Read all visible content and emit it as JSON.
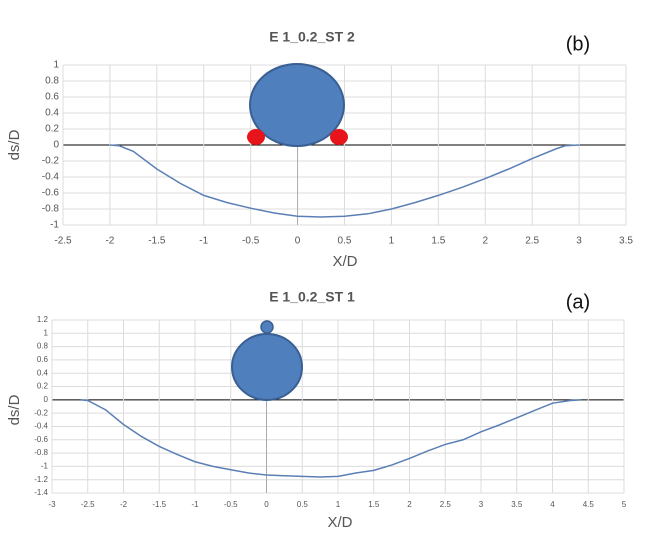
{
  "chart_data": [
    {
      "type": "line",
      "title": "E 1_0.2_ST 2",
      "panel_label": "(b)",
      "x_label": "X/D",
      "y_label": "ds/D",
      "x": [
        -2,
        -1.9,
        -1.75,
        -1.5,
        -1.25,
        -1,
        -0.75,
        -0.5,
        -0.25,
        0,
        0.25,
        0.5,
        0.75,
        1,
        1.25,
        1.5,
        1.75,
        2,
        2.25,
        2.5,
        2.75,
        2.85,
        3
      ],
      "series": [
        {
          "color": "#5b7fb5",
          "values": [
            0,
            -0.01,
            -0.08,
            -0.3,
            -0.48,
            -0.63,
            -0.72,
            -0.79,
            -0.85,
            -0.89,
            -0.9,
            -0.89,
            -0.86,
            -0.8,
            -0.72,
            -0.63,
            -0.53,
            -0.42,
            -0.3,
            -0.17,
            -0.05,
            -0.01,
            0
          ]
        }
      ],
      "xlim": [
        -2.5,
        3.5
      ],
      "xticks": [
        -2.5,
        -2,
        -1.5,
        -1,
        -0.5,
        0,
        0.5,
        1,
        1.5,
        2,
        2.5,
        3,
        3.5
      ],
      "ylim": [
        -1,
        1
      ],
      "yticks": [
        -1,
        -0.8,
        -0.6,
        -0.4,
        -0.2,
        0,
        0.2,
        0.4,
        0.6,
        0.8,
        1
      ],
      "grid": true
    },
    {
      "type": "line",
      "title": "E 1_0.2_ST 1",
      "panel_label": "(a)",
      "x_label": "X/D",
      "y_label": "ds/D",
      "x": [
        -2.6,
        -2.5,
        -2.25,
        -2,
        -1.75,
        -1.5,
        -1.25,
        -1,
        -0.75,
        -0.5,
        -0.25,
        0,
        0.25,
        0.5,
        0.75,
        1,
        1.25,
        1.5,
        1.75,
        2,
        2.25,
        2.5,
        2.75,
        3,
        3.25,
        3.5,
        3.75,
        4,
        4.25,
        4.4
      ],
      "series": [
        {
          "color": "#5b7fb5",
          "values": [
            0,
            -0.01,
            -0.15,
            -0.37,
            -0.55,
            -0.7,
            -0.82,
            -0.93,
            -1.0,
            -1.05,
            -1.1,
            -1.13,
            -1.14,
            -1.15,
            -1.16,
            -1.15,
            -1.1,
            -1.06,
            -0.98,
            -0.88,
            -0.77,
            -0.67,
            -0.6,
            -0.48,
            -0.38,
            -0.27,
            -0.16,
            -0.05,
            -0.01,
            0
          ]
        }
      ],
      "xlim": [
        -3,
        5
      ],
      "xticks": [
        -3,
        -2.5,
        -2,
        -1.5,
        -1,
        -0.5,
        0,
        0.5,
        1,
        1.5,
        2,
        2.5,
        3,
        3.5,
        4,
        4.5,
        5
      ],
      "ylim": [
        -1.4,
        1.2
      ],
      "yticks": [
        -1.4,
        -1.2,
        -1,
        -0.8,
        -0.6,
        -0.4,
        -0.2,
        0,
        0.2,
        0.4,
        0.6,
        0.8,
        1,
        1.2
      ],
      "grid": true
    }
  ]
}
